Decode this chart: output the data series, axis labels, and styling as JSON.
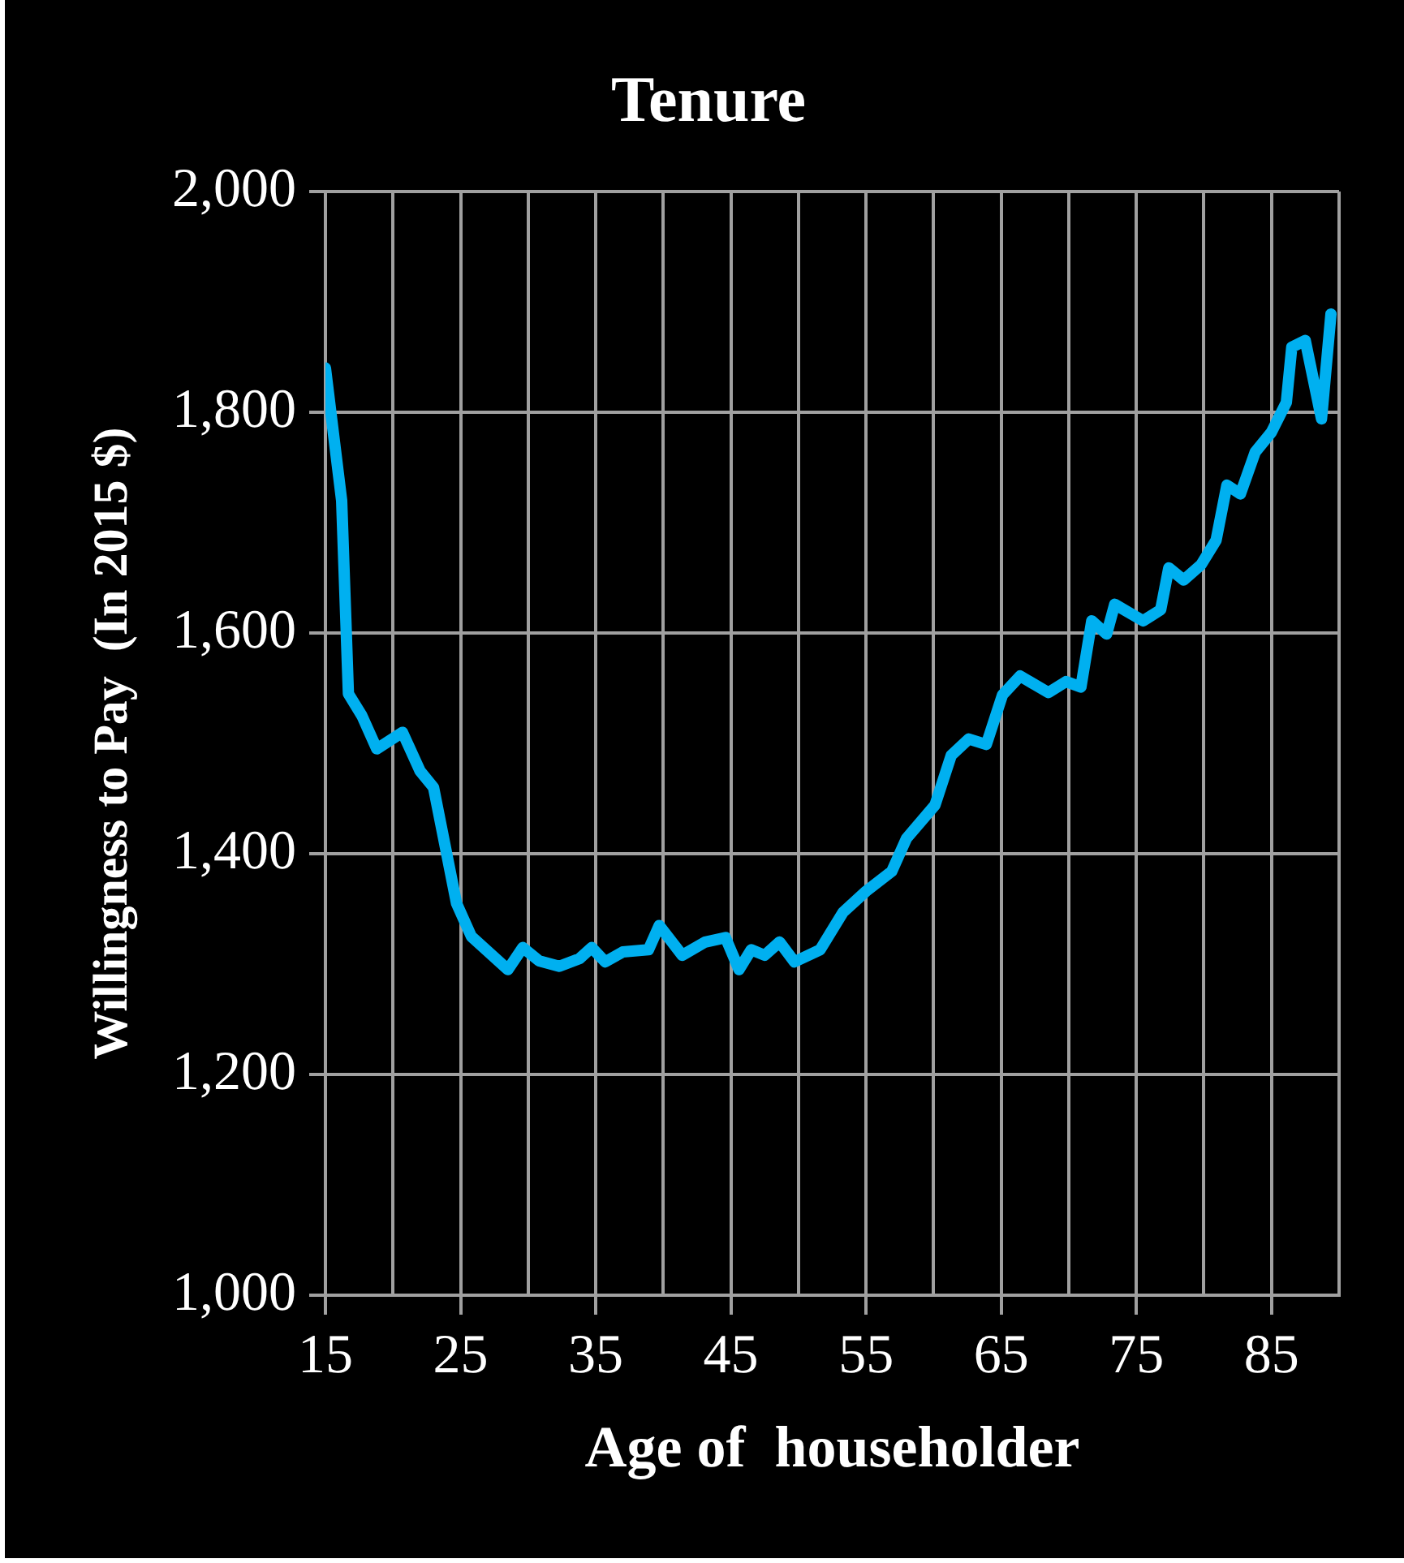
{
  "chart_data": {
    "type": "line",
    "title": "Tenure",
    "xlabel": "Age of  householder",
    "ylabel": "Willingness to Pay  (In 2015 $)",
    "x": [
      15,
      16.2,
      16.7,
      17.7,
      18.8,
      20.7,
      22,
      23,
      24.7,
      25.8,
      28.5,
      29.6,
      30.8,
      32.3,
      33.8,
      34.7,
      35.7,
      37,
      38.9,
      39.7,
      41.4,
      43.1,
      44.6,
      45.6,
      46.5,
      47.5,
      48.6,
      49.7,
      51.6,
      53.3,
      55,
      56.9,
      58,
      60.1,
      61.3,
      62.6,
      63.9,
      65.1,
      66.4,
      68.5,
      69.8,
      70.9,
      71.7,
      72.8,
      73.4,
      75.5,
      76.8,
      77.4,
      78.5,
      79.8,
      80.9,
      81.7,
      82.7,
      83.8,
      85,
      86.1,
      86.5,
      87.5,
      88.7,
      89.4
    ],
    "series": [
      {
        "color": "#00b0f0",
        "values": [
          1840,
          1720,
          1545,
          1525,
          1495,
          1510,
          1475,
          1460,
          1355,
          1325,
          1295,
          1315,
          1303,
          1298,
          1305,
          1315,
          1302,
          1311,
          1313,
          1335,
          1308,
          1320,
          1324,
          1295,
          1313,
          1308,
          1320,
          1302,
          1313,
          1347,
          1366,
          1384,
          1414,
          1444,
          1489,
          1504,
          1499,
          1544,
          1561,
          1546,
          1556,
          1551,
          1611,
          1599,
          1626,
          1611,
          1621,
          1659,
          1648,
          1662,
          1684,
          1734,
          1726,
          1764,
          1782,
          1809,
          1859,
          1865,
          1794,
          1889
        ]
      }
    ],
    "xlim": [
      15,
      90
    ],
    "xticks": [
      15,
      {
        "value": 20,
        "label": null
      },
      25,
      {
        "value": 30,
        "label": null
      },
      35,
      {
        "value": 40,
        "label": null
      },
      45,
      {
        "value": 50,
        "label": null
      },
      55,
      {
        "value": 60,
        "label": null
      },
      65,
      {
        "value": 70,
        "label": null
      },
      75,
      {
        "value": 80,
        "label": null
      },
      85,
      {
        "value": 90,
        "label": null
      }
    ],
    "ylim": [
      1000,
      2000
    ],
    "yticks": [
      {
        "value": 1000,
        "label": "1,000"
      },
      {
        "value": 1200,
        "label": "1,200"
      },
      {
        "value": 1400,
        "label": "1,400"
      },
      {
        "value": 1600,
        "label": "1,600"
      },
      {
        "value": 1800,
        "label": "1,800"
      },
      {
        "value": 2000,
        "label": "2,000"
      }
    ],
    "grid": true,
    "legend": false,
    "marker": "none",
    "line_style": "solid"
  }
}
